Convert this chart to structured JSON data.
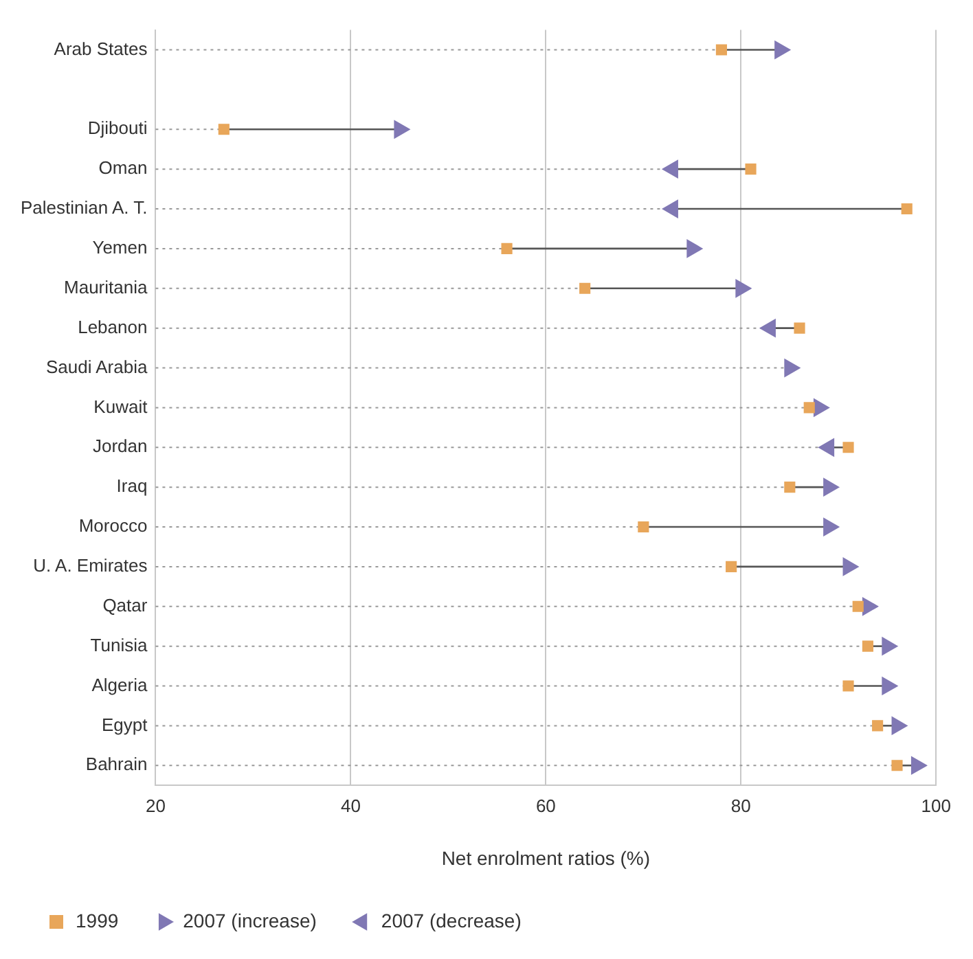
{
  "chart_data": {
    "type": "scatter",
    "orientation": "horizontal",
    "xlabel": "Net enrolment ratios (%)",
    "categories": [
      "Arab States",
      null,
      "Djibouti",
      "Oman",
      "Palestinian A. T.",
      "Yemen",
      "Mauritania",
      "Lebanon",
      "Saudi Arabia",
      "Kuwait",
      "Jordan",
      "Iraq",
      "Morocco",
      "U. A. Emirates",
      "Qatar",
      "Tunisia",
      "Algeria",
      "Egypt",
      "Bahrain"
    ],
    "xlim": [
      20,
      100
    ],
    "xticks": [
      20,
      40,
      60,
      80,
      100
    ],
    "grid": true,
    "legend": "bottom left",
    "series": [
      {
        "name": "1999",
        "color": "#e8a65a",
        "values": [
          78,
          null,
          27,
          81,
          97,
          56,
          64,
          86,
          null,
          87,
          91,
          85,
          70,
          79,
          92,
          93,
          91,
          94,
          96
        ]
      },
      {
        "name": "2007 (increase)",
        "color": "#8078b4",
        "values": [
          84,
          null,
          45,
          null,
          null,
          75,
          80,
          null,
          85,
          88,
          null,
          89,
          89,
          91,
          93,
          95,
          95,
          96,
          98
        ]
      },
      {
        "name": "2007 (decrease)",
        "color": "#8078b4",
        "values": [
          null,
          null,
          null,
          73,
          73,
          null,
          null,
          83,
          null,
          null,
          89,
          null,
          null,
          null,
          null,
          null,
          null,
          null,
          null
        ]
      }
    ]
  }
}
